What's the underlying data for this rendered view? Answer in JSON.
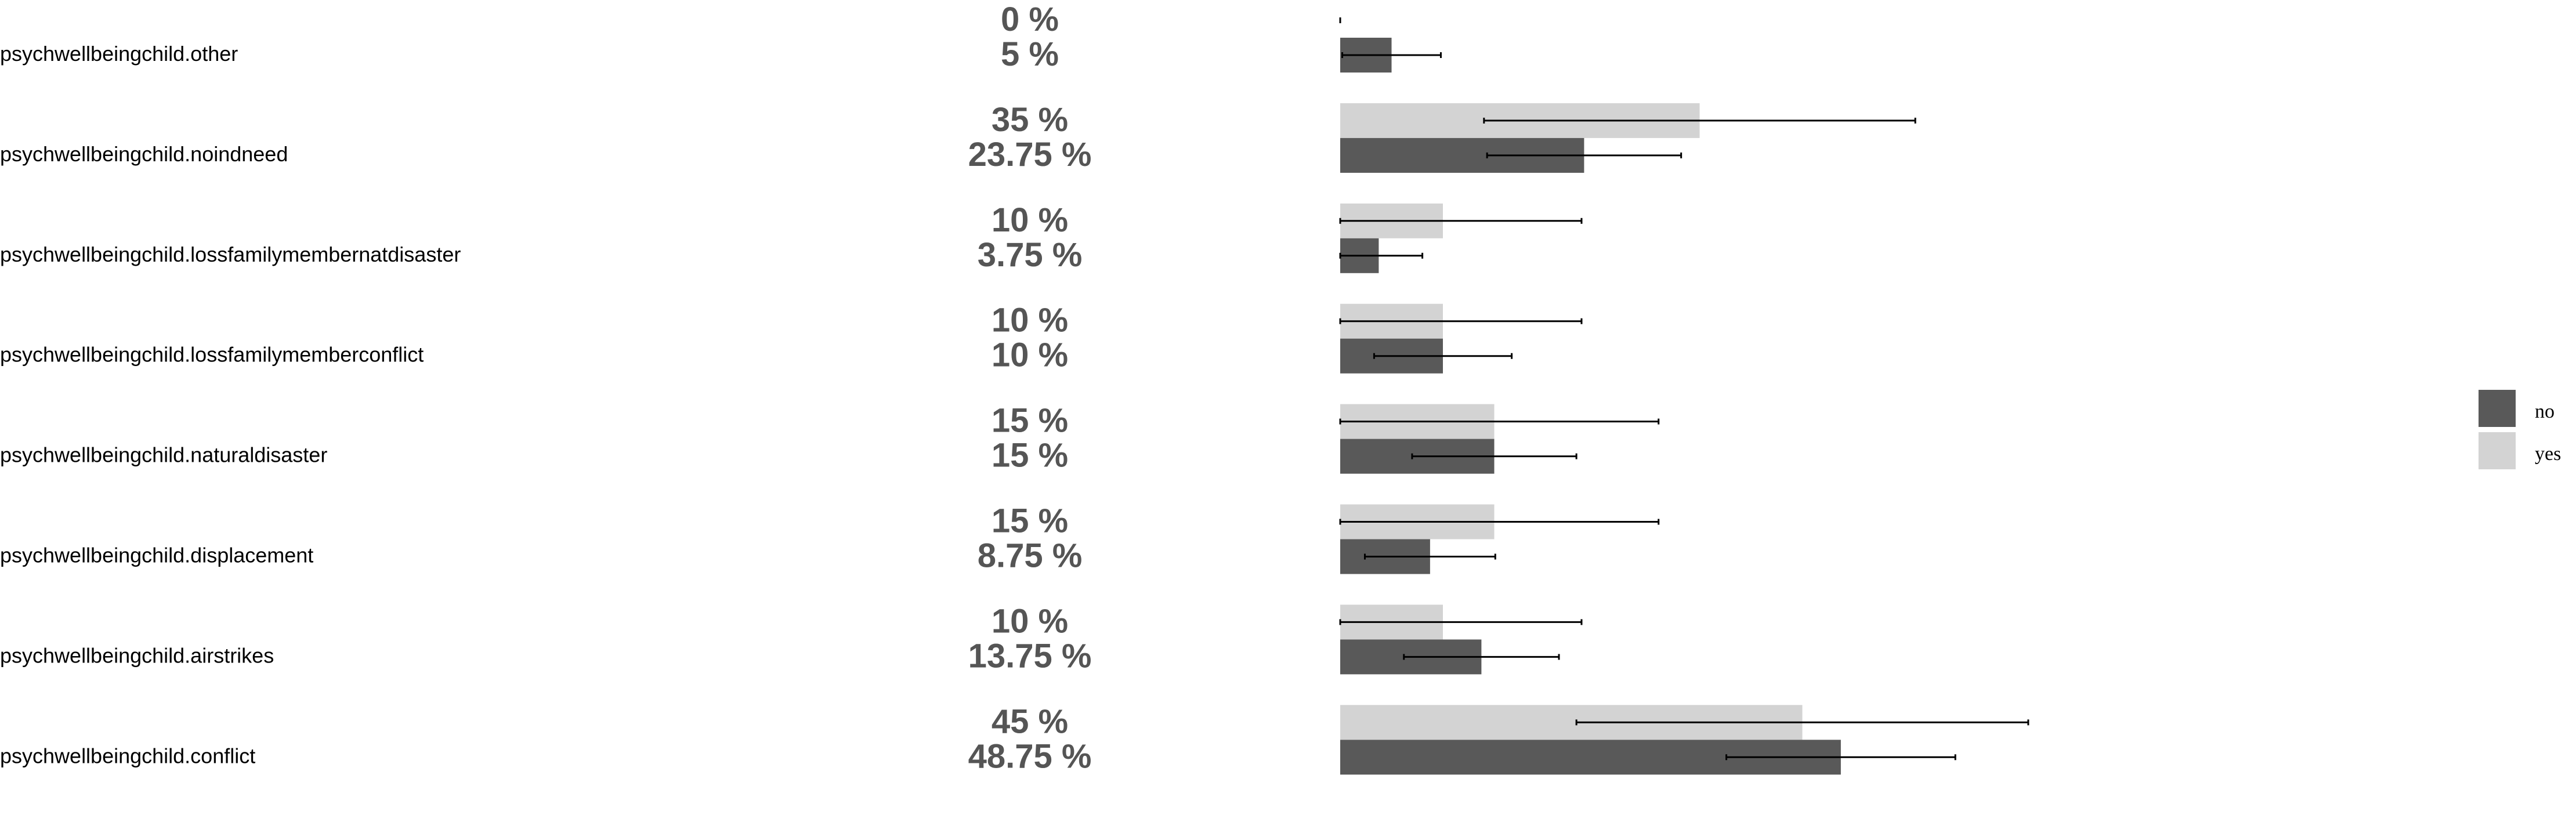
{
  "chart_data": {
    "type": "bar",
    "orientation": "horizontal",
    "categories": [
      "psychwellbeingchild.other",
      "psychwellbeingchild.noindneed",
      "psychwellbeingchild.lossfamilymembernatdisaster",
      "psychwellbeingchild.lossfamilymemberconflict",
      "psychwellbeingchild.naturaldisaster",
      "psychwellbeingchild.displacement",
      "psychwellbeingchild.airstrikes",
      "psychwellbeingchild.conflict"
    ],
    "series": [
      {
        "name": "yes",
        "color": "#d3d3d3",
        "values": [
          0,
          35,
          10,
          10,
          15,
          15,
          10,
          45
        ],
        "labels": [
          "0 %",
          "35 %",
          "10 %",
          "10 %",
          "15 %",
          "15 %",
          "10 %",
          "45 %"
        ],
        "error_low": [
          0,
          14,
          0,
          0,
          0,
          0,
          0,
          23
        ],
        "error_high": [
          0,
          56,
          23.5,
          23.5,
          31,
          31,
          23.5,
          67
        ]
      },
      {
        "name": "no",
        "color": "#595959",
        "values": [
          5,
          23.75,
          3.75,
          10,
          15,
          8.75,
          13.75,
          48.75
        ],
        "labels": [
          "5 %",
          "23.75 %",
          "3.75 %",
          "10 %",
          "15 %",
          "8.75 %",
          "13.75 %",
          "48.75 %"
        ],
        "error_low": [
          0.2,
          14.3,
          0,
          3.3,
          7,
          2.4,
          6.2,
          37.6
        ],
        "error_high": [
          9.8,
          33.2,
          8,
          16.7,
          23,
          15.1,
          21.3,
          59.9
        ]
      }
    ],
    "xlim": [
      0,
      100
    ],
    "grid": false,
    "legend": "right"
  }
}
